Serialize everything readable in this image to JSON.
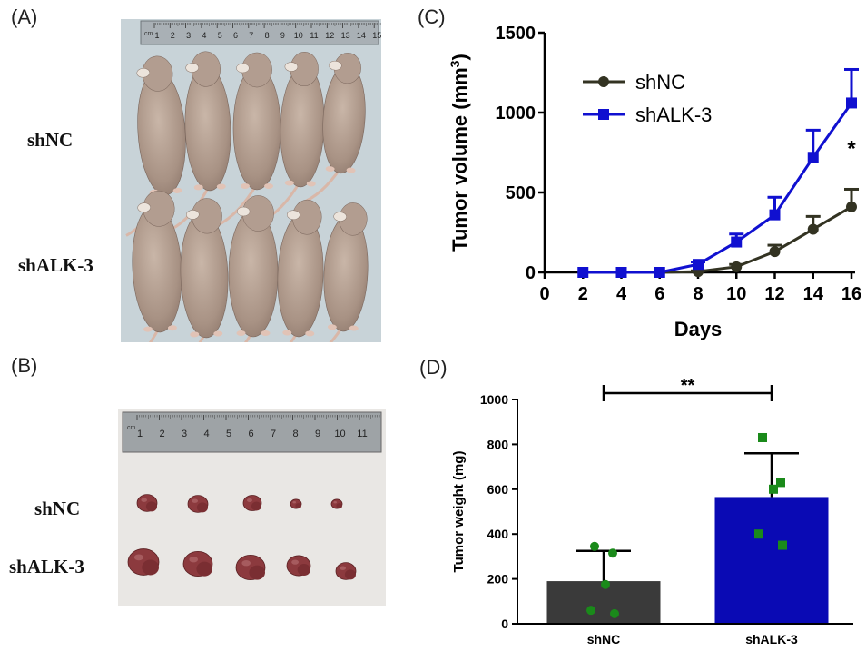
{
  "panels": {
    "a": {
      "letter": "(A)",
      "labels": [
        "shNC",
        "shALK-3"
      ],
      "ruler_unit": "cm",
      "ruler_ticks": [
        "1",
        "2",
        "3",
        "4",
        "5",
        "6",
        "7",
        "8",
        "9",
        "10",
        "11",
        "12",
        "13",
        "14",
        "15"
      ]
    },
    "b": {
      "letter": "(B)",
      "labels": [
        "shNC",
        "shALK-3"
      ],
      "ruler_unit": "cm",
      "ruler_ticks": [
        "1",
        "2",
        "3",
        "4",
        "5",
        "6",
        "7",
        "8",
        "9",
        "10",
        "11"
      ]
    },
    "c": {
      "letter": "(C)"
    },
    "d": {
      "letter": "(D)"
    }
  },
  "colors": {
    "shNC": "#333322",
    "shALK3": "#1010d0",
    "bar_shNC": "#3a3a3a",
    "bar_shALK3": "#0a0ab4",
    "points": "#1a8a1a"
  },
  "chart_data": [
    {
      "type": "line",
      "xlabel": "Days",
      "ylabel": "Tumor volume (mm",
      "ylabel_sup": "3",
      "ylabel_end": ")",
      "xlim": [
        0,
        16
      ],
      "ylim": [
        0,
        1500
      ],
      "x_ticks": [
        0,
        2,
        4,
        6,
        8,
        10,
        12,
        14,
        16
      ],
      "y_ticks": [
        0,
        500,
        1000,
        1500
      ],
      "x": [
        2,
        4,
        6,
        8,
        10,
        12,
        14,
        16
      ],
      "series": [
        {
          "name": "shNC",
          "values": [
            0,
            0,
            0,
            5,
            35,
            130,
            270,
            410
          ],
          "errors": [
            0,
            0,
            0,
            5,
            15,
            40,
            80,
            110
          ]
        },
        {
          "name": "shALK-3",
          "values": [
            0,
            0,
            0,
            50,
            190,
            360,
            720,
            1060
          ],
          "errors": [
            0,
            0,
            0,
            15,
            50,
            110,
            170,
            210
          ]
        }
      ],
      "annotation": "*",
      "legend": "top-left"
    },
    {
      "type": "bar",
      "categories": [
        "shNC",
        "shALK-3"
      ],
      "values": [
        190,
        565
      ],
      "errors": [
        135,
        195
      ],
      "points": [
        [
          345,
          315,
          175,
          60,
          45
        ],
        [
          830,
          630,
          600,
          400,
          350
        ]
      ],
      "ylabel": "Tumor weight (mg)",
      "ylim": [
        0,
        1000
      ],
      "y_ticks": [
        0,
        200,
        400,
        600,
        800,
        1000
      ],
      "significance": "**"
    }
  ]
}
